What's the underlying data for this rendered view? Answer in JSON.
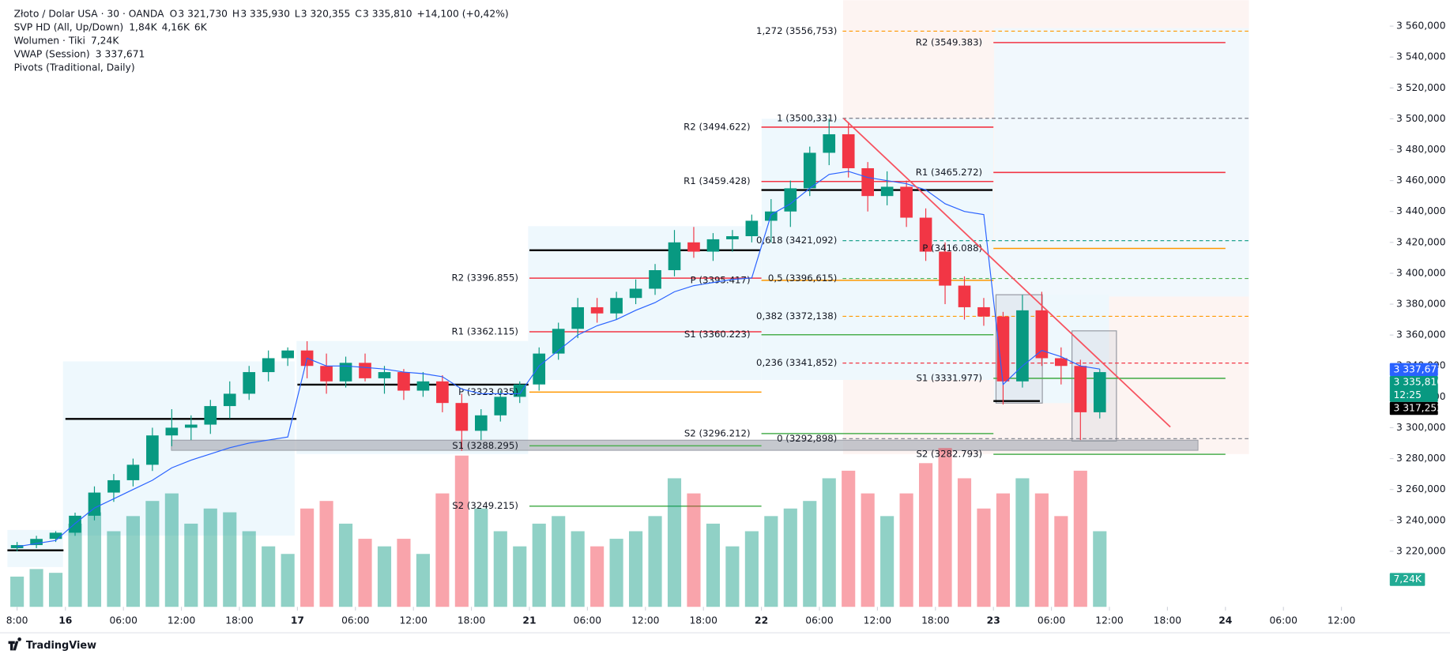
{
  "legend": {
    "symbol": "Złoto / Dolar USA · 30 · OANDA",
    "ohlc": [
      [
        "O",
        "3 321,730"
      ],
      [
        "H",
        "3 335,930"
      ],
      [
        "L",
        "3 320,355"
      ],
      [
        "C",
        "3 335,810"
      ]
    ],
    "change": "+14,100 (+0,42%)",
    "indicators": [
      {
        "name": "SVP HD (All, Up/Down)",
        "values": [
          "1,84K",
          "4,16K",
          "6K"
        ],
        "colors": [
          "#22a8c9",
          "#f06292",
          "#131722"
        ]
      },
      {
        "name": "Wolumen · Tiki",
        "values": [
          "7,24K"
        ],
        "colors": [
          "#22ab94"
        ]
      },
      {
        "name": "VWAP (Session)",
        "values": [
          "3 337,671"
        ],
        "colors": [
          "#2962ff"
        ]
      },
      {
        "name": "Pivots (Traditional, Daily)",
        "values": [],
        "colors": []
      }
    ]
  },
  "chart_data": {
    "type": "candlestick",
    "up_color": "#089981",
    "down_color": "#f23645",
    "xlim": [
      -6,
      137
    ],
    "ylim": [
      3184,
      3576.8
    ],
    "volume_lim": [
      0,
      60
    ],
    "grid": false,
    "yticks": [
      {
        "value": 3220,
        "label": "3 220,000"
      },
      {
        "value": 3240,
        "label": "3 240,000"
      },
      {
        "value": 3260,
        "label": "3 260,000"
      },
      {
        "value": 3280,
        "label": "3 280,000"
      },
      {
        "value": 3300,
        "label": "3 300,000"
      },
      {
        "value": 3320,
        "label": "3 320,000"
      },
      {
        "value": 3340,
        "label": "3 340,000"
      },
      {
        "value": 3360,
        "label": "3 360,000"
      },
      {
        "value": 3380,
        "label": "3 380,000"
      },
      {
        "value": 3400,
        "label": "3 400,000"
      },
      {
        "value": 3420,
        "label": "3 420,000"
      },
      {
        "value": 3440,
        "label": "3 440,000"
      },
      {
        "value": 3460,
        "label": "3 460,000"
      },
      {
        "value": 3480,
        "label": "3 480,000"
      },
      {
        "value": 3500,
        "label": "3 500,000"
      },
      {
        "value": 3520,
        "label": "3 520,000"
      },
      {
        "value": 3540,
        "label": "3 540,000"
      },
      {
        "value": 3560,
        "label": "3 560,000"
      }
    ],
    "xticks": [
      {
        "value": -5,
        "label": "8:00"
      },
      {
        "value": 0,
        "label": "16",
        "day": true
      },
      {
        "value": 6,
        "label": "06:00"
      },
      {
        "value": 12,
        "label": "12:00"
      },
      {
        "value": 18,
        "label": "18:00"
      },
      {
        "value": 24,
        "label": "17",
        "day": true
      },
      {
        "value": 30,
        "label": "06:00"
      },
      {
        "value": 36,
        "label": "12:00"
      },
      {
        "value": 42,
        "label": "18:00"
      },
      {
        "value": 48,
        "label": "21",
        "day": true
      },
      {
        "value": 54,
        "label": "06:00"
      },
      {
        "value": 60,
        "label": "12:00"
      },
      {
        "value": 66,
        "label": "18:00"
      },
      {
        "value": 72,
        "label": "22",
        "day": true
      },
      {
        "value": 78,
        "label": "06:00"
      },
      {
        "value": 84,
        "label": "12:00"
      },
      {
        "value": 90,
        "label": "18:00"
      },
      {
        "value": 96,
        "label": "23",
        "day": true
      },
      {
        "value": 102,
        "label": "06:00"
      },
      {
        "value": 108,
        "label": "12:00"
      },
      {
        "value": 114,
        "label": "18:00"
      },
      {
        "value": 120,
        "label": "24",
        "day": true
      },
      {
        "value": 126,
        "label": "06:00"
      },
      {
        "value": 132,
        "label": "12:00"
      }
    ],
    "x": [
      -5,
      -3,
      -1,
      1,
      3,
      5,
      7,
      9,
      11,
      13,
      15,
      17,
      19,
      21,
      23,
      25,
      27,
      29,
      31,
      33,
      35,
      37,
      39,
      41,
      43,
      45,
      47,
      49,
      51,
      53,
      55,
      57,
      59,
      61,
      63,
      65,
      67,
      69,
      71,
      73,
      75,
      77,
      79,
      81,
      83,
      85,
      87,
      89,
      91,
      93,
      95,
      97,
      99,
      101,
      103,
      105,
      107
    ],
    "candles": [
      [
        3222,
        3226,
        3220,
        3224
      ],
      [
        3224,
        3230,
        3222,
        3228
      ],
      [
        3228,
        3233,
        3226,
        3232
      ],
      [
        3232,
        3245,
        3230,
        3243
      ],
      [
        3243,
        3262,
        3240,
        3258
      ],
      [
        3258,
        3270,
        3252,
        3266
      ],
      [
        3266,
        3280,
        3262,
        3276
      ],
      [
        3276,
        3300,
        3272,
        3295
      ],
      [
        3295,
        3312,
        3288,
        3300
      ],
      [
        3300,
        3308,
        3292,
        3302
      ],
      [
        3302,
        3318,
        3296,
        3314
      ],
      [
        3314,
        3330,
        3306,
        3322
      ],
      [
        3322,
        3340,
        3318,
        3336
      ],
      [
        3336,
        3350,
        3330,
        3345
      ],
      [
        3345,
        3352,
        3340,
        3350
      ],
      [
        3350,
        3356,
        3332,
        3340
      ],
      [
        3340,
        3348,
        3322,
        3330
      ],
      [
        3330,
        3346,
        3326,
        3342
      ],
      [
        3342,
        3348,
        3330,
        3332
      ],
      [
        3332,
        3340,
        3322,
        3336
      ],
      [
        3336,
        3338,
        3318,
        3324
      ],
      [
        3324,
        3336,
        3320,
        3330
      ],
      [
        3330,
        3334,
        3310,
        3316
      ],
      [
        3316,
        3322,
        3285,
        3298
      ],
      [
        3298,
        3312,
        3292,
        3308
      ],
      [
        3308,
        3324,
        3304,
        3320
      ],
      [
        3320,
        3330,
        3316,
        3328
      ],
      [
        3328,
        3352,
        3324,
        3348
      ],
      [
        3348,
        3368,
        3344,
        3364
      ],
      [
        3364,
        3384,
        3358,
        3378
      ],
      [
        3378,
        3384,
        3368,
        3374
      ],
      [
        3374,
        3388,
        3370,
        3384
      ],
      [
        3384,
        3396,
        3380,
        3390
      ],
      [
        3390,
        3406,
        3386,
        3402
      ],
      [
        3402,
        3428,
        3398,
        3420
      ],
      [
        3420,
        3430,
        3410,
        3414
      ],
      [
        3414,
        3426,
        3408,
        3422
      ],
      [
        3422,
        3428,
        3414,
        3424
      ],
      [
        3424,
        3438,
        3420,
        3434
      ],
      [
        3434,
        3448,
        3420,
        3440
      ],
      [
        3440,
        3460,
        3430,
        3455
      ],
      [
        3455,
        3482,
        3450,
        3478
      ],
      [
        3478,
        3500,
        3470,
        3490
      ],
      [
        3490,
        3498,
        3462,
        3468
      ],
      [
        3468,
        3472,
        3440,
        3450
      ],
      [
        3450,
        3466,
        3444,
        3456
      ],
      [
        3456,
        3460,
        3430,
        3436
      ],
      [
        3436,
        3442,
        3408,
        3414
      ],
      [
        3414,
        3420,
        3380,
        3392
      ],
      [
        3392,
        3398,
        3370,
        3378
      ],
      [
        3378,
        3384,
        3366,
        3372
      ],
      [
        3372,
        3375,
        3315,
        3330
      ],
      [
        3330,
        3386,
        3326,
        3376
      ],
      [
        3376,
        3388,
        3340,
        3345
      ],
      [
        3345,
        3352,
        3328,
        3340
      ],
      [
        3340,
        3344,
        3292,
        3310
      ],
      [
        3310,
        3338,
        3306,
        3336
      ]
    ],
    "volume": [
      8,
      10,
      9,
      22,
      25,
      20,
      24,
      28,
      30,
      22,
      26,
      25,
      20,
      16,
      14,
      26,
      28,
      22,
      18,
      16,
      18,
      14,
      30,
      40,
      26,
      20,
      16,
      22,
      24,
      20,
      16,
      18,
      20,
      24,
      34,
      30,
      22,
      16,
      20,
      24,
      26,
      28,
      34,
      36,
      30,
      24,
      30,
      38,
      42,
      34,
      26,
      30,
      34,
      30,
      24,
      36,
      20
    ],
    "vwap": [
      3223,
      3225,
      3227,
      3238,
      3248,
      3254,
      3260,
      3266,
      3274,
      3279,
      3283,
      3287,
      3290,
      3292,
      3294,
      3345,
      3340,
      3340,
      3339,
      3338,
      3336,
      3335,
      3333,
      3325,
      3322,
      3322,
      3322,
      3340,
      3350,
      3360,
      3366,
      3370,
      3376,
      3381,
      3388,
      3392,
      3394,
      3396,
      3397,
      3438,
      3445,
      3455,
      3464,
      3466,
      3462,
      3460,
      3458,
      3454,
      3445,
      3440,
      3438,
      3328,
      3340,
      3350,
      3346,
      3340,
      3338
    ],
    "vwap_color": "#2962ff",
    "pivots": [
      {
        "label": "R2 (3396.855)",
        "value": 3396.855,
        "color": "#f23645",
        "from": 48,
        "to": 72
      },
      {
        "label": "R1 (3362.115)",
        "value": 3362.115,
        "color": "#f23645",
        "from": 48,
        "to": 72
      },
      {
        "label": "P (3323.035)",
        "value": 3323.035,
        "color": "#ff9800",
        "from": 48,
        "to": 72
      },
      {
        "label": "S1 (3288.295)",
        "value": 3288.295,
        "color": "#4caf50",
        "from": 48,
        "to": 72
      },
      {
        "label": "S2 (3249.215)",
        "value": 3249.215,
        "color": "#4caf50",
        "from": 48,
        "to": 72
      },
      {
        "label": "R2 (3494.622)",
        "value": 3494.622,
        "color": "#f23645",
        "from": 72,
        "to": 96
      },
      {
        "label": "R1 (3459.428)",
        "value": 3459.428,
        "color": "#f23645",
        "from": 72,
        "to": 96
      },
      {
        "label": "P (3395.417)",
        "value": 3395.417,
        "color": "#ff9800",
        "from": 72,
        "to": 96
      },
      {
        "label": "S1 (3360.223)",
        "value": 3360.223,
        "color": "#4caf50",
        "from": 72,
        "to": 96
      },
      {
        "label": "S2 (3296.212)",
        "value": 3296.212,
        "color": "#4caf50",
        "from": 72,
        "to": 96
      },
      {
        "label": "R2 (3549.383)",
        "value": 3549.383,
        "color": "#f23645",
        "from": 96,
        "to": 120
      },
      {
        "label": "R1 (3465.272)",
        "value": 3465.272,
        "color": "#f23645",
        "from": 96,
        "to": 120
      },
      {
        "label": "P (3416.088)",
        "value": 3416.088,
        "color": "#ff9800",
        "from": 96,
        "to": 120
      },
      {
        "label": "S1 (3331.977)",
        "value": 3331.977,
        "color": "#4caf50",
        "from": 96,
        "to": 120
      },
      {
        "label": "S2 (3282.793)",
        "value": 3282.793,
        "color": "#4caf50",
        "from": 96,
        "to": 120
      }
    ],
    "fib": {
      "from": 80.4,
      "to": 122.5,
      "levels": [
        {
          "label": "1,272 (3556,753)",
          "value": 3556.753,
          "color": "#ff9800"
        },
        {
          "label": "1 (3500,331)",
          "value": 3500.331,
          "color": "#787b86"
        },
        {
          "label": "0,618 (3421,092)",
          "value": 3421.092,
          "color": "#089981"
        },
        {
          "label": "0,5 (3396,615)",
          "value": 3396.615,
          "color": "#4caf50"
        },
        {
          "label": "0,382 (3372,138)",
          "value": 3372.138,
          "color": "#ff9800"
        },
        {
          "label": "0,236 (3341,852)",
          "value": 3341.852,
          "color": "#f23645"
        },
        {
          "label": "0 (3292,898)",
          "value": 3292.898,
          "color": "#787b86"
        }
      ]
    },
    "poc": [
      {
        "from": -6,
        "to": -0.2,
        "value": 3220.6
      },
      {
        "from": 0,
        "to": 23.9,
        "value": 3305.7
      },
      {
        "from": 24,
        "to": 47.9,
        "value": 3327.9
      },
      {
        "from": 48,
        "to": 71.9,
        "value": 3414.9
      },
      {
        "from": 72,
        "to": 95.9,
        "value": 3453.9
      },
      {
        "from": 96,
        "to": 100.8,
        "value": 3317.252
      }
    ],
    "trendline": {
      "x": [
        80.5,
        114.3
      ],
      "y": [
        3500.3,
        3300.5
      ],
      "color": "#f7525f"
    },
    "price_badges": [
      {
        "value": 3337.671,
        "label": "3 337,671",
        "color": "#2962ff"
      },
      {
        "value": 3335.81,
        "label": "3 335,810",
        "color": "#089981",
        "countdown": "12:25"
      },
      {
        "value": 3317.252,
        "label": "3 317,252",
        "color": "#000000"
      }
    ],
    "volume_badge": {
      "value": 7.24,
      "label": "7,24K",
      "color": "#22ab94"
    }
  },
  "footer": {
    "brand": "TradingView"
  }
}
